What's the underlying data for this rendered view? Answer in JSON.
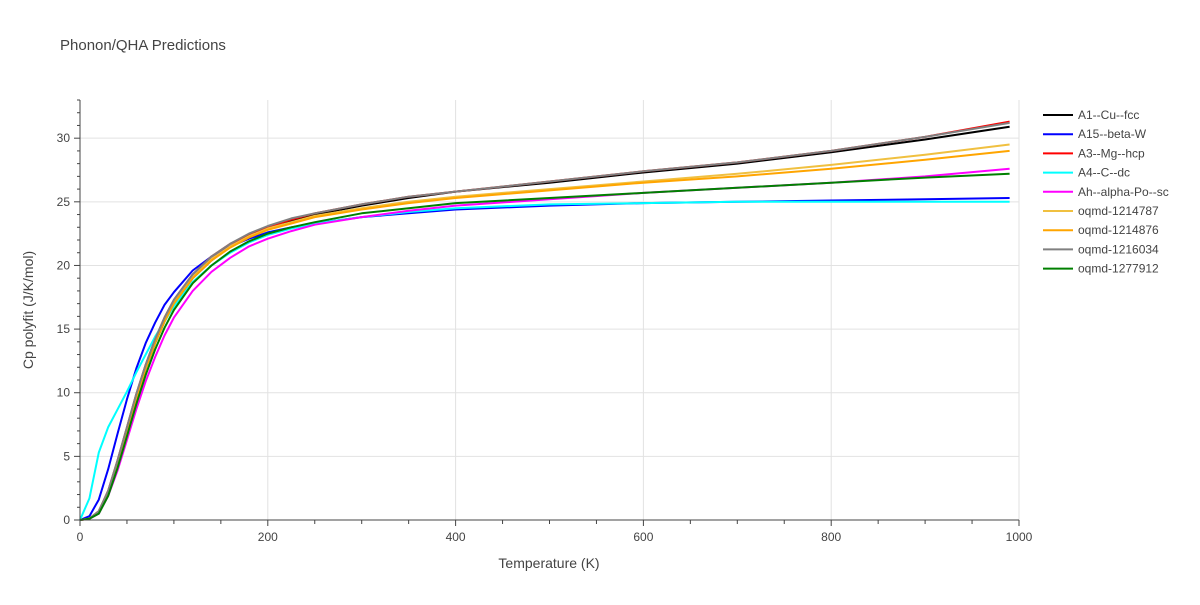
{
  "chart_data": {
    "type": "line",
    "title": "Phonon/QHA Predictions",
    "xlabel": "Temperature (K)",
    "ylabel": "Cp polyfit (J/K/mol)",
    "xlim": [
      0,
      1000
    ],
    "ylim": [
      0,
      33
    ],
    "xticks": [
      0,
      200,
      400,
      600,
      800,
      1000
    ],
    "yticks": [
      0,
      5,
      10,
      15,
      20,
      25,
      30
    ],
    "grid": true,
    "legend_position": "right",
    "series": [
      {
        "name": "A1--Cu--fcc",
        "color": "#000000",
        "points": [
          [
            0,
            0
          ],
          [
            10,
            0.1
          ],
          [
            20,
            0.6
          ],
          [
            30,
            2.1
          ],
          [
            40,
            4.4
          ],
          [
            50,
            7.0
          ],
          [
            60,
            9.6
          ],
          [
            70,
            11.9
          ],
          [
            80,
            13.9
          ],
          [
            90,
            15.6
          ],
          [
            100,
            17.0
          ],
          [
            120,
            19.0
          ],
          [
            140,
            20.4
          ],
          [
            160,
            21.5
          ],
          [
            180,
            22.3
          ],
          [
            200,
            22.9
          ],
          [
            225,
            23.5
          ],
          [
            250,
            24.0
          ],
          [
            300,
            24.7
          ],
          [
            350,
            25.3
          ],
          [
            400,
            25.8
          ],
          [
            500,
            26.5
          ],
          [
            600,
            27.3
          ],
          [
            700,
            28.0
          ],
          [
            800,
            28.9
          ],
          [
            900,
            29.9
          ],
          [
            990,
            30.9
          ]
        ]
      },
      {
        "name": "A15--beta-W",
        "color": "#0000ff",
        "points": [
          [
            0,
            0
          ],
          [
            10,
            0.3
          ],
          [
            20,
            1.6
          ],
          [
            30,
            4.0
          ],
          [
            40,
            6.8
          ],
          [
            50,
            9.5
          ],
          [
            60,
            11.9
          ],
          [
            70,
            13.9
          ],
          [
            80,
            15.5
          ],
          [
            90,
            16.9
          ],
          [
            100,
            17.9
          ],
          [
            120,
            19.6
          ],
          [
            140,
            20.7
          ],
          [
            160,
            21.5
          ],
          [
            180,
            22.1
          ],
          [
            200,
            22.6
          ],
          [
            225,
            23.0
          ],
          [
            250,
            23.3
          ],
          [
            300,
            23.8
          ],
          [
            350,
            24.1
          ],
          [
            400,
            24.4
          ],
          [
            500,
            24.7
          ],
          [
            600,
            24.9
          ],
          [
            700,
            25.0
          ],
          [
            800,
            25.1
          ],
          [
            900,
            25.2
          ],
          [
            990,
            25.3
          ]
        ]
      },
      {
        "name": "A3--Mg--hcp",
        "color": "#ff0000",
        "points": [
          [
            0,
            0
          ],
          [
            10,
            0.1
          ],
          [
            20,
            0.7
          ],
          [
            30,
            2.3
          ],
          [
            40,
            4.7
          ],
          [
            50,
            7.3
          ],
          [
            60,
            9.9
          ],
          [
            70,
            12.2
          ],
          [
            80,
            14.2
          ],
          [
            90,
            15.9
          ],
          [
            100,
            17.3
          ],
          [
            120,
            19.3
          ],
          [
            140,
            20.7
          ],
          [
            160,
            21.7
          ],
          [
            180,
            22.4
          ],
          [
            200,
            23.0
          ],
          [
            225,
            23.6
          ],
          [
            250,
            24.1
          ],
          [
            300,
            24.8
          ],
          [
            350,
            25.4
          ],
          [
            400,
            25.8
          ],
          [
            500,
            26.6
          ],
          [
            600,
            27.4
          ],
          [
            700,
            28.1
          ],
          [
            800,
            29.0
          ],
          [
            900,
            30.1
          ],
          [
            990,
            31.3
          ]
        ]
      },
      {
        "name": "A4--C--dc",
        "color": "#00ffff",
        "points": [
          [
            0,
            0
          ],
          [
            10,
            1.7
          ],
          [
            20,
            5.3
          ],
          [
            30,
            7.3
          ],
          [
            40,
            8.7
          ],
          [
            50,
            10.1
          ],
          [
            60,
            11.6
          ],
          [
            70,
            13.0
          ],
          [
            80,
            14.4
          ],
          [
            90,
            15.6
          ],
          [
            100,
            16.8
          ],
          [
            120,
            18.7
          ],
          [
            140,
            20.0
          ],
          [
            160,
            21.0
          ],
          [
            180,
            21.8
          ],
          [
            200,
            22.4
          ],
          [
            225,
            22.9
          ],
          [
            250,
            23.3
          ],
          [
            300,
            23.8
          ],
          [
            350,
            24.2
          ],
          [
            400,
            24.5
          ],
          [
            500,
            24.8
          ],
          [
            600,
            24.9
          ],
          [
            700,
            25.0
          ],
          [
            800,
            25.0
          ],
          [
            900,
            25.0
          ],
          [
            990,
            25.0
          ]
        ]
      },
      {
        "name": "Ah--alpha-Po--sc",
        "color": "#ff00ff",
        "points": [
          [
            0,
            0
          ],
          [
            10,
            0.1
          ],
          [
            20,
            0.5
          ],
          [
            30,
            1.9
          ],
          [
            40,
            3.9
          ],
          [
            50,
            6.3
          ],
          [
            60,
            8.7
          ],
          [
            70,
            10.9
          ],
          [
            80,
            12.8
          ],
          [
            90,
            14.5
          ],
          [
            100,
            15.9
          ],
          [
            120,
            18.0
          ],
          [
            140,
            19.5
          ],
          [
            160,
            20.6
          ],
          [
            180,
            21.5
          ],
          [
            200,
            22.1
          ],
          [
            225,
            22.7
          ],
          [
            250,
            23.2
          ],
          [
            300,
            23.8
          ],
          [
            350,
            24.3
          ],
          [
            400,
            24.7
          ],
          [
            500,
            25.2
          ],
          [
            600,
            25.7
          ],
          [
            700,
            26.1
          ],
          [
            800,
            26.5
          ],
          [
            900,
            27.0
          ],
          [
            990,
            27.6
          ]
        ]
      },
      {
        "name": "oqmd-1214787",
        "color": "#f0c040",
        "points": [
          [
            0,
            0
          ],
          [
            10,
            0.1
          ],
          [
            20,
            0.7
          ],
          [
            30,
            2.2
          ],
          [
            40,
            4.5
          ],
          [
            50,
            7.1
          ],
          [
            60,
            9.7
          ],
          [
            70,
            12.0
          ],
          [
            80,
            14.0
          ],
          [
            90,
            15.7
          ],
          [
            100,
            17.1
          ],
          [
            120,
            19.1
          ],
          [
            140,
            20.5
          ],
          [
            160,
            21.5
          ],
          [
            180,
            22.3
          ],
          [
            200,
            22.9
          ],
          [
            225,
            23.4
          ],
          [
            250,
            23.9
          ],
          [
            300,
            24.5
          ],
          [
            350,
            25.0
          ],
          [
            400,
            25.4
          ],
          [
            500,
            26.0
          ],
          [
            600,
            26.6
          ],
          [
            700,
            27.2
          ],
          [
            800,
            27.9
          ],
          [
            900,
            28.7
          ],
          [
            990,
            29.5
          ]
        ]
      },
      {
        "name": "oqmd-1214876",
        "color": "#ffa500",
        "points": [
          [
            0,
            0
          ],
          [
            10,
            0.1
          ],
          [
            20,
            0.7
          ],
          [
            30,
            2.2
          ],
          [
            40,
            4.5
          ],
          [
            50,
            7.1
          ],
          [
            60,
            9.6
          ],
          [
            70,
            11.9
          ],
          [
            80,
            13.9
          ],
          [
            90,
            15.6
          ],
          [
            100,
            17.0
          ],
          [
            120,
            19.0
          ],
          [
            140,
            20.4
          ],
          [
            160,
            21.4
          ],
          [
            180,
            22.2
          ],
          [
            200,
            22.8
          ],
          [
            225,
            23.3
          ],
          [
            250,
            23.8
          ],
          [
            300,
            24.4
          ],
          [
            350,
            24.9
          ],
          [
            400,
            25.3
          ],
          [
            500,
            25.9
          ],
          [
            600,
            26.5
          ],
          [
            700,
            27.0
          ],
          [
            800,
            27.6
          ],
          [
            900,
            28.3
          ],
          [
            990,
            29.0
          ]
        ]
      },
      {
        "name": "oqmd-1216034",
        "color": "#808080",
        "points": [
          [
            0,
            0
          ],
          [
            10,
            0.1
          ],
          [
            20,
            0.7
          ],
          [
            30,
            2.3
          ],
          [
            40,
            4.7
          ],
          [
            50,
            7.3
          ],
          [
            60,
            9.9
          ],
          [
            70,
            12.2
          ],
          [
            80,
            14.2
          ],
          [
            90,
            15.9
          ],
          [
            100,
            17.3
          ],
          [
            120,
            19.3
          ],
          [
            140,
            20.7
          ],
          [
            160,
            21.7
          ],
          [
            180,
            22.5
          ],
          [
            200,
            23.1
          ],
          [
            225,
            23.7
          ],
          [
            250,
            24.1
          ],
          [
            300,
            24.8
          ],
          [
            350,
            25.4
          ],
          [
            400,
            25.8
          ],
          [
            500,
            26.6
          ],
          [
            600,
            27.4
          ],
          [
            700,
            28.1
          ],
          [
            800,
            29.0
          ],
          [
            900,
            30.1
          ],
          [
            990,
            31.2
          ]
        ]
      },
      {
        "name": "oqmd-1277912",
        "color": "#008000",
        "points": [
          [
            0,
            0
          ],
          [
            10,
            0.1
          ],
          [
            20,
            0.5
          ],
          [
            30,
            1.9
          ],
          [
            40,
            4.1
          ],
          [
            50,
            6.6
          ],
          [
            60,
            9.1
          ],
          [
            70,
            11.4
          ],
          [
            80,
            13.4
          ],
          [
            90,
            15.1
          ],
          [
            100,
            16.5
          ],
          [
            120,
            18.6
          ],
          [
            140,
            20.0
          ],
          [
            160,
            21.1
          ],
          [
            180,
            21.9
          ],
          [
            200,
            22.5
          ],
          [
            225,
            23.0
          ],
          [
            250,
            23.4
          ],
          [
            300,
            24.1
          ],
          [
            350,
            24.5
          ],
          [
            400,
            24.9
          ],
          [
            500,
            25.3
          ],
          [
            600,
            25.7
          ],
          [
            700,
            26.1
          ],
          [
            800,
            26.5
          ],
          [
            900,
            26.9
          ],
          [
            990,
            27.2
          ]
        ]
      }
    ]
  }
}
